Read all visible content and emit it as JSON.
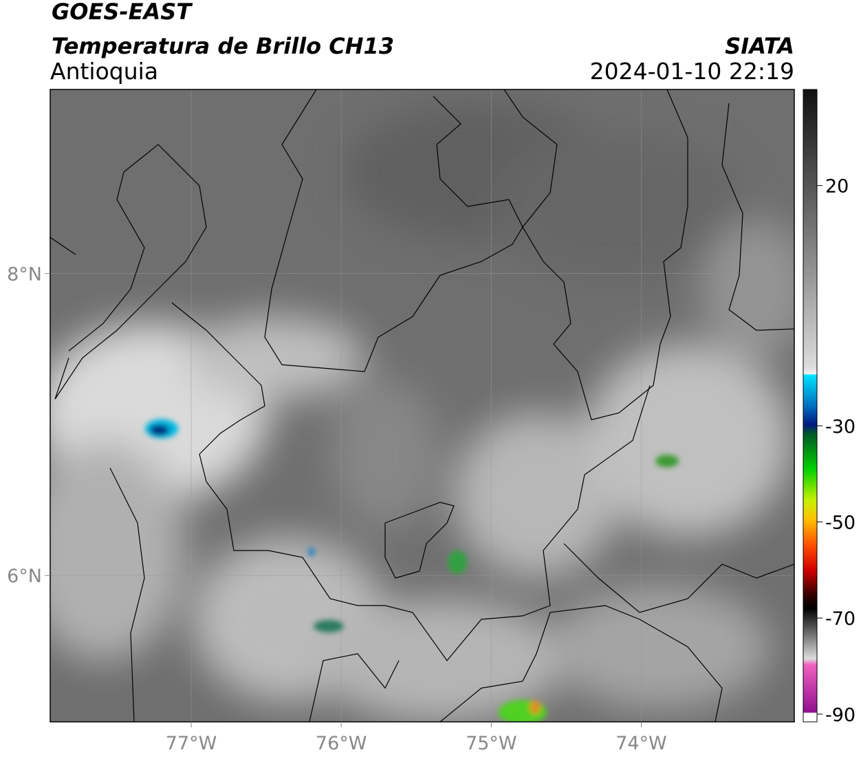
{
  "header": {
    "title": "GOES-EAST",
    "subtitle": "Temperatura de Brillo CH13",
    "region": "Antioquia",
    "source": "SIATA",
    "datetime": "2024-01-10 22:19"
  },
  "map": {
    "xlim": [
      -77.94,
      -72.98
    ],
    "ylim": [
      5.03,
      9.22
    ],
    "xticks": [
      {
        "value": -77,
        "label": "77°W"
      },
      {
        "value": -76,
        "label": "76°W"
      },
      {
        "value": -75,
        "label": "75°W"
      },
      {
        "value": -74,
        "label": "74°W"
      }
    ],
    "yticks": [
      {
        "value": 8,
        "label": "8°N"
      },
      {
        "value": 6,
        "label": "6°N"
      }
    ]
  },
  "colorbar": {
    "lim": [
      -91.6,
      40
    ],
    "ticks": [
      20,
      -30,
      -50,
      -70,
      -90
    ]
  }
}
